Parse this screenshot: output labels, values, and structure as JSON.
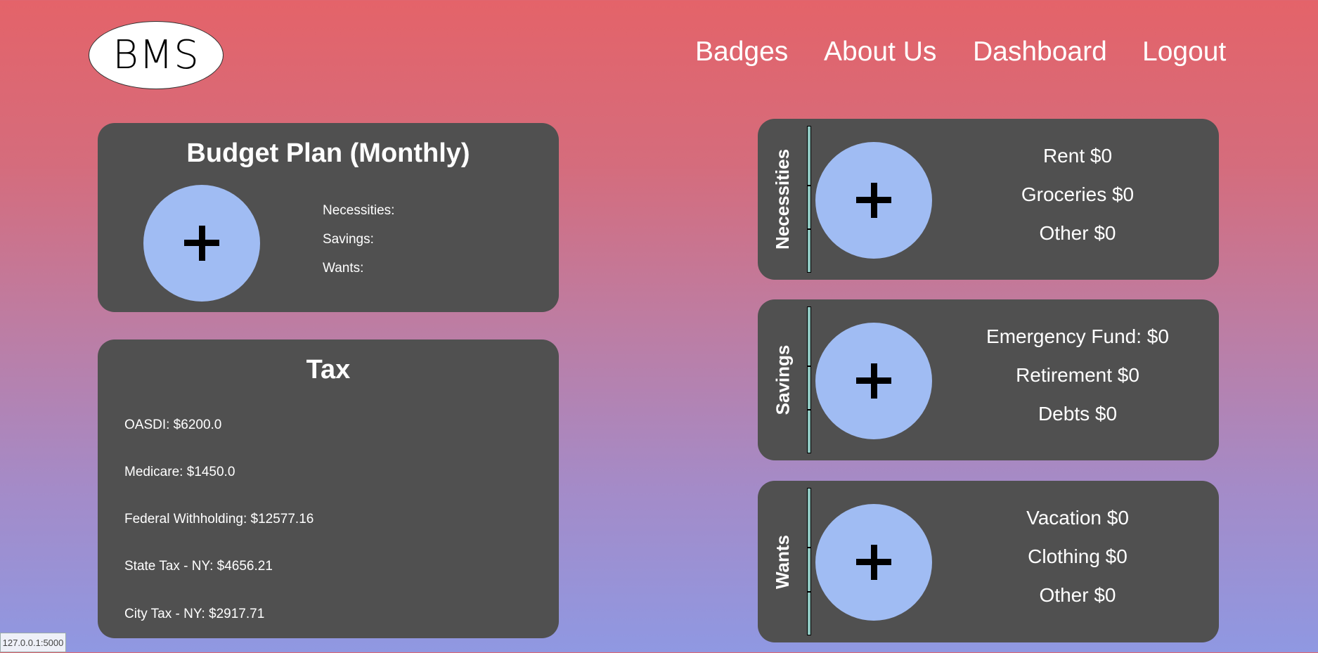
{
  "logo": "BMS",
  "nav": [
    "Badges",
    "About Us",
    "Dashboard",
    "Logout"
  ],
  "budget": {
    "title": "Budget Plan (Monthly)",
    "labels": [
      "Necessities:",
      "Savings:",
      "Wants:"
    ]
  },
  "tax": {
    "title": "Tax",
    "items": [
      "OASDI: $6200.0",
      "Medicare: $1450.0",
      "Federal Withholding: $12577.16",
      "State Tax - NY: $4656.21",
      "City Tax - NY: $2917.71"
    ]
  },
  "categories": [
    {
      "name": "Necessities",
      "items": [
        "Rent $0",
        "Groceries $0",
        "Other $0"
      ]
    },
    {
      "name": "Savings",
      "items": [
        "Emergency Fund: $0",
        "Retirement $0",
        "Debts $0"
      ]
    },
    {
      "name": "Wants",
      "items": [
        "Vacation $0",
        "Clothing $0",
        "Other $0"
      ]
    }
  ],
  "status_url": "127.0.0.1:5000"
}
